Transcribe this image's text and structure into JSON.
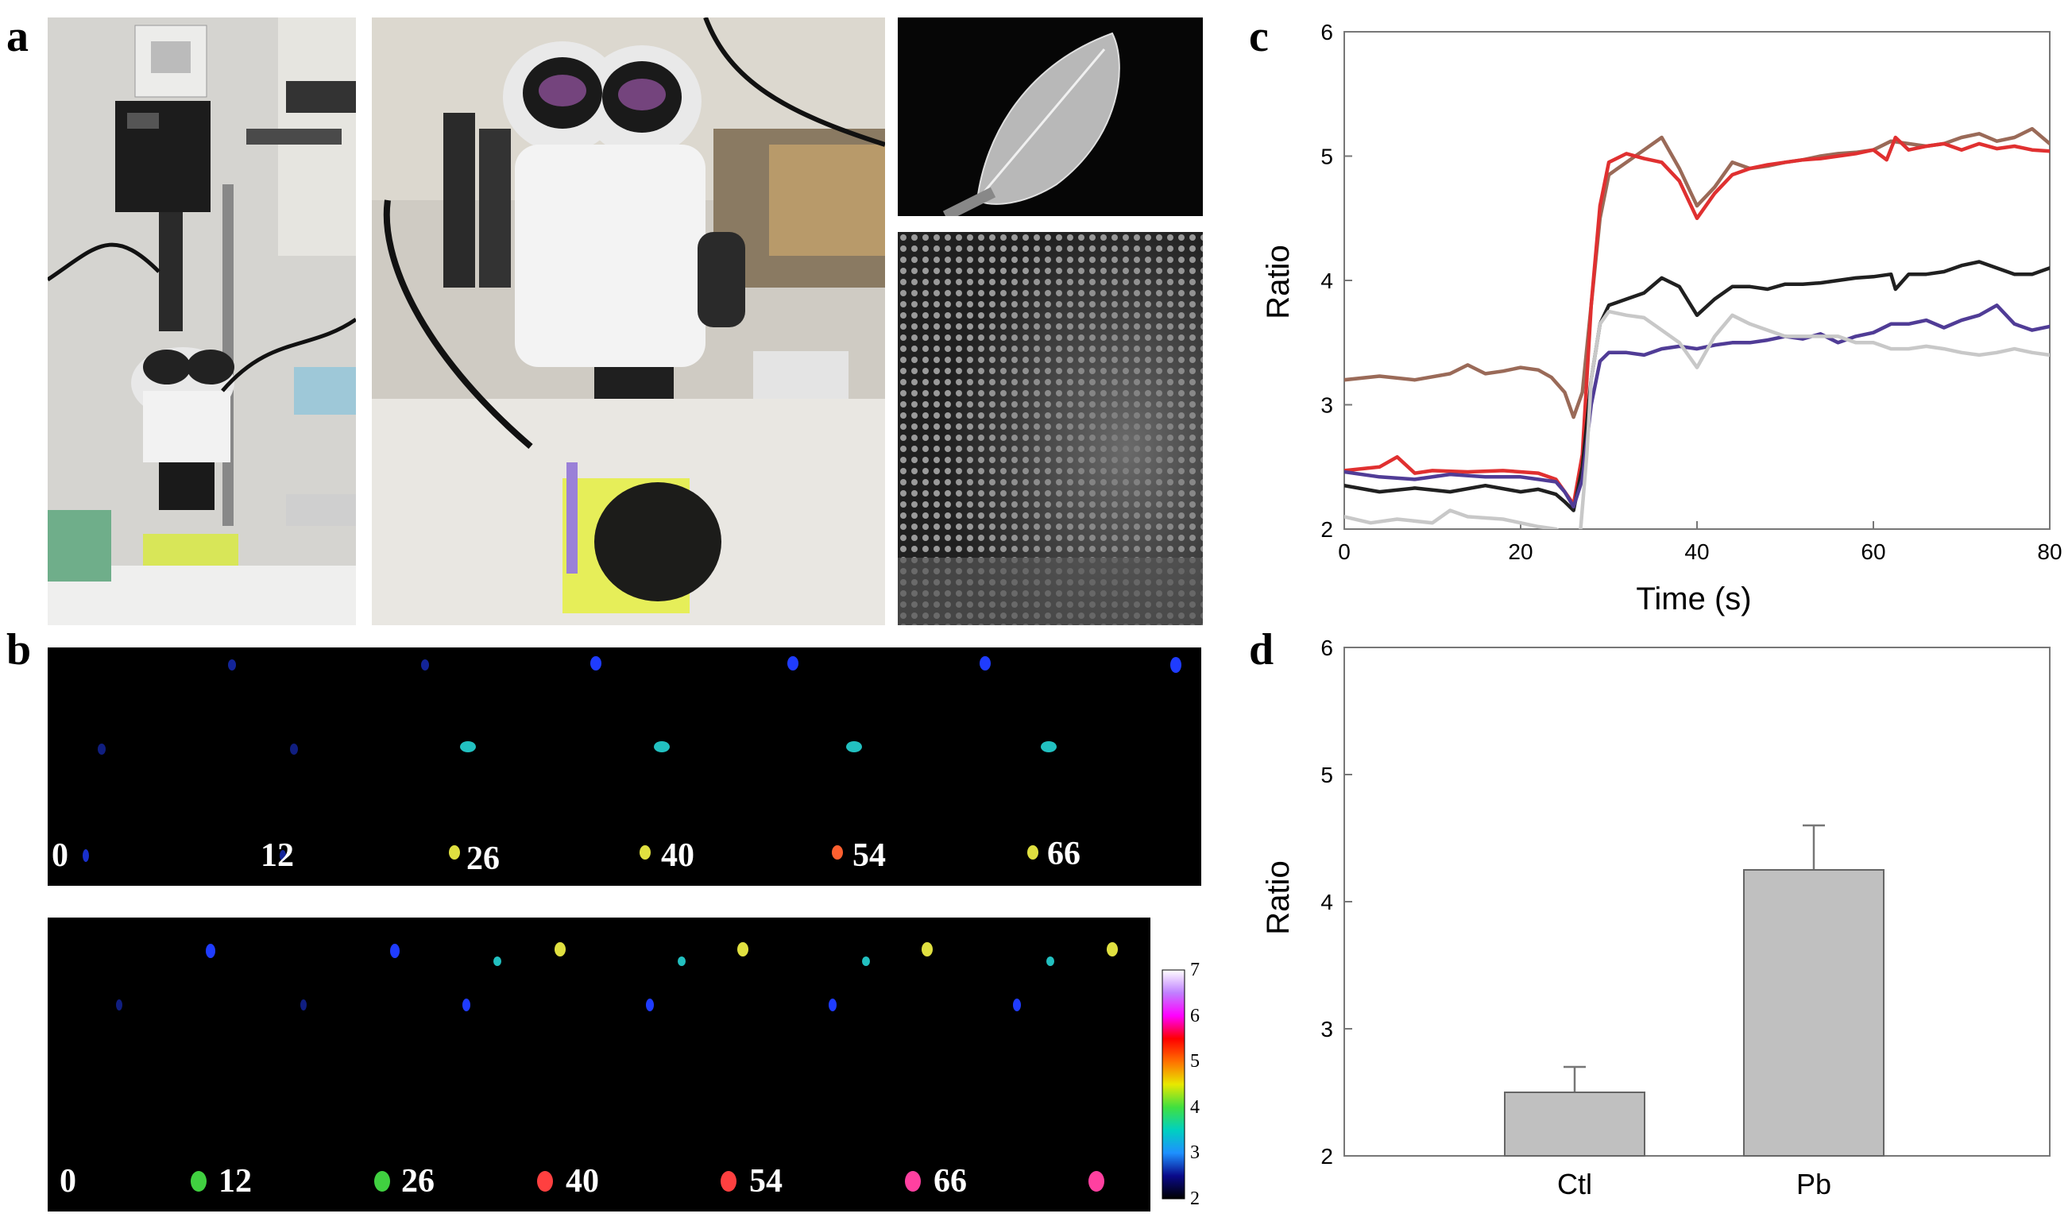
{
  "panel_letters": {
    "a": "a",
    "b": "b",
    "c": "c",
    "d": "d"
  },
  "panel_b": {
    "top_row_labels": [
      "0",
      "12",
      "26",
      "40",
      "54",
      "66"
    ],
    "bottom_row_labels": [
      "0",
      "12",
      "26",
      "40",
      "54",
      "66"
    ],
    "colorbar_ticks": [
      "2",
      "3",
      "4",
      "5",
      "6",
      "7"
    ],
    "colorbar_colors": [
      "#000000",
      "#0a0a8a",
      "#1e90ff",
      "#00d0c0",
      "#40e040",
      "#e8e800",
      "#ff7000",
      "#ff0000",
      "#ff00ff",
      "#c080ff",
      "#ffffff"
    ]
  },
  "chart_data": [
    {
      "type": "line",
      "panel": "c",
      "xlabel": "Time (s)",
      "ylabel": "Ratio",
      "xlim": [
        0,
        80
      ],
      "ylim": [
        2,
        6
      ],
      "xticks": [
        "0",
        "20",
        "40",
        "60",
        "80"
      ],
      "yticks": [
        "2",
        "3",
        "4",
        "5",
        "6"
      ],
      "grid": false,
      "series": [
        {
          "color": "#9a6a58",
          "x": [
            0,
            4,
            8,
            12,
            14,
            16,
            18,
            20,
            22,
            23.5,
            25,
            26,
            27,
            28,
            29,
            30,
            32,
            34,
            36,
            38,
            40,
            42,
            44,
            46,
            48,
            50,
            52,
            54,
            56,
            58,
            60,
            62,
            64,
            66,
            68,
            70,
            72,
            74,
            76,
            78,
            80
          ],
          "y": [
            3.2,
            3.23,
            3.2,
            3.25,
            3.32,
            3.25,
            3.27,
            3.3,
            3.28,
            3.22,
            3.1,
            2.9,
            3.1,
            3.8,
            4.5,
            4.85,
            4.95,
            5.05,
            5.15,
            4.9,
            4.6,
            4.75,
            4.95,
            4.9,
            4.92,
            4.95,
            4.97,
            5,
            5.02,
            5.03,
            5.05,
            5.12,
            5.1,
            5.08,
            5.1,
            5.15,
            5.18,
            5.12,
            5.15,
            5.22,
            5.1
          ]
        },
        {
          "color": "#e03030",
          "x": [
            0,
            4,
            6,
            8,
            10,
            14,
            18,
            22,
            24,
            25,
            26,
            27,
            28,
            29,
            30,
            32,
            34,
            36,
            38,
            40,
            42,
            44,
            46,
            48,
            50,
            52,
            54,
            56,
            58,
            60,
            61.5,
            62.5,
            64,
            66,
            68,
            70,
            72,
            74,
            76,
            78,
            80
          ],
          "y": [
            2.47,
            2.5,
            2.58,
            2.45,
            2.47,
            2.46,
            2.47,
            2.45,
            2.4,
            2.3,
            2.2,
            2.6,
            3.8,
            4.6,
            4.95,
            5.02,
            4.98,
            4.95,
            4.8,
            4.5,
            4.7,
            4.85,
            4.9,
            4.93,
            4.95,
            4.97,
            4.98,
            5.0,
            5.02,
            5.05,
            4.97,
            5.15,
            5.05,
            5.08,
            5.1,
            5.05,
            5.1,
            5.06,
            5.08,
            5.05,
            5.04
          ]
        },
        {
          "color": "#202020",
          "x": [
            0,
            4,
            8,
            12,
            16,
            20,
            22,
            24,
            25,
            26,
            27,
            28,
            29,
            30,
            32,
            34,
            36,
            38,
            40,
            42,
            44,
            46,
            48,
            50,
            52,
            54,
            56,
            58,
            60,
            62,
            62.5,
            64,
            66,
            68,
            70,
            72,
            74,
            76,
            78,
            80
          ],
          "y": [
            2.35,
            2.3,
            2.33,
            2.3,
            2.35,
            2.3,
            2.32,
            2.28,
            2.22,
            2.15,
            2.5,
            3.2,
            3.65,
            3.8,
            3.85,
            3.9,
            4.02,
            3.95,
            3.72,
            3.85,
            3.95,
            3.95,
            3.93,
            3.97,
            3.97,
            3.98,
            4.0,
            4.02,
            4.03,
            4.05,
            3.93,
            4.05,
            4.05,
            4.07,
            4.12,
            4.15,
            4.1,
            4.05,
            4.05,
            4.1
          ]
        },
        {
          "color": "#503c96",
          "x": [
            0,
            4,
            8,
            12,
            16,
            20,
            22,
            24,
            25,
            26,
            27,
            28,
            29,
            30,
            32,
            34,
            36,
            38,
            40,
            42,
            44,
            46,
            48,
            50,
            52,
            54,
            56,
            58,
            60,
            62,
            64,
            66,
            68,
            70,
            72,
            74,
            76,
            78,
            80
          ],
          "y": [
            2.46,
            2.42,
            2.4,
            2.44,
            2.42,
            2.42,
            2.4,
            2.38,
            2.3,
            2.18,
            2.4,
            3.0,
            3.35,
            3.42,
            3.42,
            3.4,
            3.45,
            3.47,
            3.45,
            3.48,
            3.5,
            3.5,
            3.52,
            3.55,
            3.53,
            3.57,
            3.5,
            3.55,
            3.58,
            3.65,
            3.65,
            3.68,
            3.62,
            3.68,
            3.72,
            3.8,
            3.65,
            3.6,
            3.63
          ]
        },
        {
          "color": "#c8c8c8",
          "x": [
            0,
            3,
            6,
            10,
            12,
            14,
            18,
            22,
            24,
            26,
            26.8,
            27.5,
            28,
            29,
            30,
            32,
            34,
            36,
            38,
            40,
            42,
            44,
            46,
            48,
            50,
            52,
            54,
            56,
            58,
            60,
            62,
            64,
            66,
            68,
            70,
            72,
            74,
            76,
            78,
            80
          ],
          "y": [
            2.1,
            2.05,
            2.08,
            2.05,
            2.15,
            2.1,
            2.08,
            2.02,
            2.0,
            1.9,
            2.0,
            2.6,
            3.2,
            3.65,
            3.75,
            3.72,
            3.7,
            3.6,
            3.5,
            3.3,
            3.55,
            3.72,
            3.65,
            3.6,
            3.55,
            3.55,
            3.55,
            3.55,
            3.5,
            3.5,
            3.45,
            3.45,
            3.47,
            3.45,
            3.42,
            3.4,
            3.42,
            3.45,
            3.42,
            3.4
          ]
        }
      ]
    },
    {
      "type": "bar",
      "panel": "d",
      "xlabel": "",
      "ylabel": "Ratio",
      "ylim": [
        2,
        6
      ],
      "yticks": [
        "2",
        "3",
        "4",
        "5",
        "6"
      ],
      "categories": [
        "Ctl",
        "Pb"
      ],
      "values": [
        2.5,
        4.25
      ],
      "errors": [
        0.2,
        0.35
      ],
      "bar_color": "#c0c0c0",
      "grid": false
    }
  ]
}
